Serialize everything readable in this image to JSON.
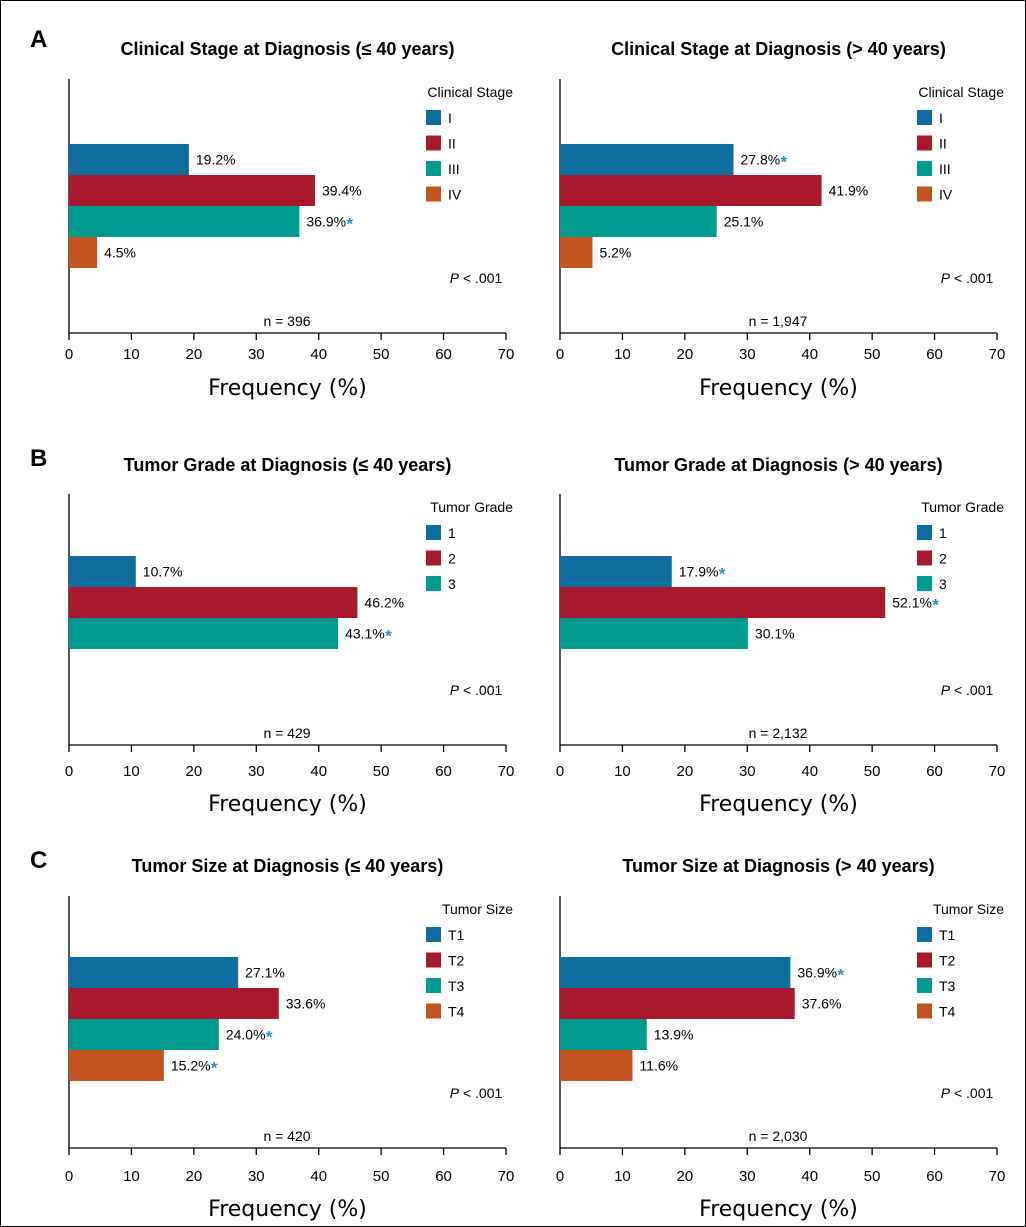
{
  "panel_letters": [
    "A",
    "B",
    "C"
  ],
  "colors": {
    "c1": "#0d6fa0",
    "c2": "#a8182f",
    "c3": "#009a8e",
    "c4": "#c4531e",
    "asterisk": "#2a8fc0"
  },
  "chart_data": [
    {
      "type": "bar",
      "orientation": "horizontal",
      "title": "Clinical Stage at Diagnosis (≤ 40 years)",
      "xlabel": "Frequency (%)",
      "xlim": [
        0,
        70
      ],
      "xticks": [
        "0",
        "10",
        "20",
        "30",
        "40",
        "50",
        "60",
        "70"
      ],
      "legend_title": "Clinical Stage",
      "legend_position": "top-right",
      "categories": [
        "I",
        "II",
        "III",
        "IV"
      ],
      "values": [
        19.2,
        39.4,
        36.9,
        4.5
      ],
      "labels": [
        "19.2%",
        "39.4%",
        "36.9%",
        "4.5%"
      ],
      "significant": [
        false,
        false,
        true,
        false
      ],
      "p_text": "P < .001",
      "n_text": "n = 396"
    },
    {
      "type": "bar",
      "orientation": "horizontal",
      "title": "Clinical Stage at Diagnosis (> 40 years)",
      "xlabel": "Frequency (%)",
      "xlim": [
        0,
        70
      ],
      "xticks": [
        "0",
        "10",
        "20",
        "30",
        "40",
        "50",
        "60",
        "70"
      ],
      "legend_title": "Clinical Stage",
      "legend_position": "top-right",
      "categories": [
        "I",
        "II",
        "III",
        "IV"
      ],
      "values": [
        27.8,
        41.9,
        25.1,
        5.2
      ],
      "labels": [
        "27.8%",
        "41.9%",
        "25.1%",
        "5.2%"
      ],
      "significant": [
        true,
        false,
        false,
        false
      ],
      "p_text": "P < .001",
      "n_text": "n = 1,947"
    },
    {
      "type": "bar",
      "orientation": "horizontal",
      "title": "Tumor Grade at Diagnosis (≤ 40 years)",
      "xlabel": "Frequency (%)",
      "xlim": [
        0,
        70
      ],
      "xticks": [
        "0",
        "10",
        "20",
        "30",
        "40",
        "50",
        "60",
        "70"
      ],
      "legend_title": "Tumor Grade",
      "legend_position": "top-right",
      "categories": [
        "1",
        "2",
        "3"
      ],
      "values": [
        10.7,
        46.2,
        43.1
      ],
      "labels": [
        "10.7%",
        "46.2%",
        "43.1%"
      ],
      "significant": [
        false,
        false,
        true
      ],
      "p_text": "P < .001",
      "n_text": "n = 429"
    },
    {
      "type": "bar",
      "orientation": "horizontal",
      "title": "Tumor Grade at Diagnosis (> 40 years)",
      "xlabel": "Frequency (%)",
      "xlim": [
        0,
        70
      ],
      "xticks": [
        "0",
        "10",
        "20",
        "30",
        "40",
        "50",
        "60",
        "70"
      ],
      "legend_title": "Tumor Grade",
      "legend_position": "top-right",
      "categories": [
        "1",
        "2",
        "3"
      ],
      "values": [
        17.9,
        52.1,
        30.1
      ],
      "labels": [
        "17.9%",
        "52.1%",
        "30.1%"
      ],
      "significant": [
        true,
        true,
        false
      ],
      "p_text": "P < .001",
      "n_text": "n = 2,132"
    },
    {
      "type": "bar",
      "orientation": "horizontal",
      "title": "Tumor Size at Diagnosis (≤ 40 years)",
      "xlabel": "Frequency (%)",
      "xlim": [
        0,
        70
      ],
      "xticks": [
        "0",
        "10",
        "20",
        "30",
        "40",
        "50",
        "60",
        "70"
      ],
      "legend_title": "Tumor Size",
      "legend_position": "top-right",
      "categories": [
        "T1",
        "T2",
        "T3",
        "T4"
      ],
      "values": [
        27.1,
        33.6,
        24.0,
        15.2
      ],
      "labels": [
        "27.1%",
        "33.6%",
        "24.0%",
        "15.2%"
      ],
      "significant": [
        false,
        false,
        true,
        true
      ],
      "p_text": "P < .001",
      "n_text": "n = 420"
    },
    {
      "type": "bar",
      "orientation": "horizontal",
      "title": "Tumor Size at Diagnosis (> 40 years)",
      "xlabel": "Frequency (%)",
      "xlim": [
        0,
        70
      ],
      "xticks": [
        "0",
        "10",
        "20",
        "30",
        "40",
        "50",
        "60",
        "70"
      ],
      "legend_title": "Tumor Size",
      "legend_position": "top-right",
      "categories": [
        "T1",
        "T2",
        "T3",
        "T4"
      ],
      "values": [
        36.9,
        37.6,
        13.9,
        11.6
      ],
      "labels": [
        "36.9%",
        "37.6%",
        "13.9%",
        "11.6%"
      ],
      "significant": [
        true,
        false,
        false,
        false
      ],
      "p_text": "P < .001",
      "n_text": "n = 2,030"
    }
  ]
}
